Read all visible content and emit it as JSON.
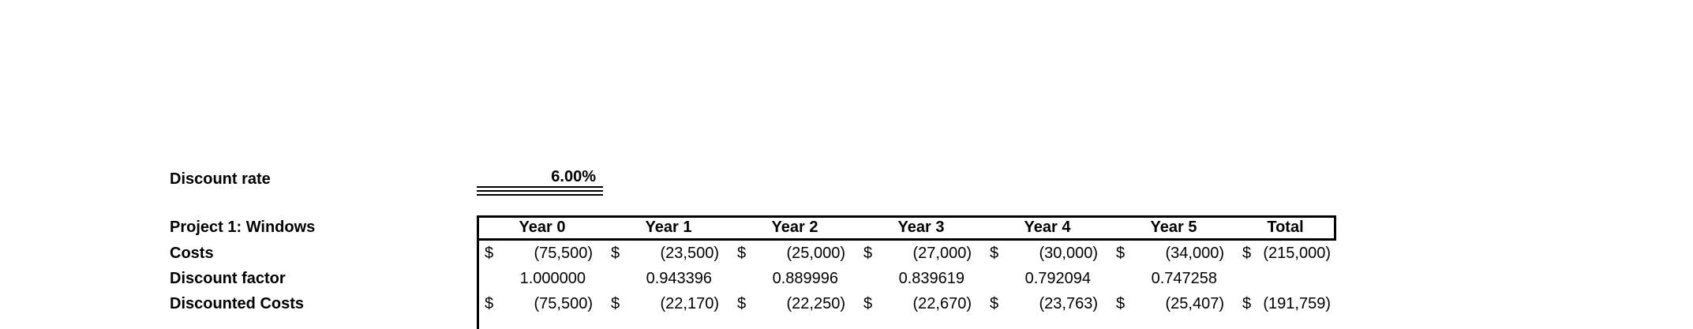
{
  "discount_rate": {
    "label": "Discount rate",
    "value": "6.00%"
  },
  "project": {
    "title": "Project 1: Windows",
    "row_labels": {
      "costs": "Costs",
      "discount_factor": "Discount factor",
      "discounted_costs": "Discounted Costs"
    }
  },
  "table": {
    "headers": [
      "Year 0",
      "Year 1",
      "Year 2",
      "Year 3",
      "Year 4",
      "Year 5",
      "Total"
    ],
    "costs": [
      {
        "currency": "$",
        "amount": "(75,500)"
      },
      {
        "currency": "$",
        "amount": "(23,500)"
      },
      {
        "currency": "$",
        "amount": "(25,000)"
      },
      {
        "currency": "$",
        "amount": "(27,000)"
      },
      {
        "currency": "$",
        "amount": "(30,000)"
      },
      {
        "currency": "$",
        "amount": "(34,000)"
      },
      {
        "currency": "$",
        "amount": "(215,000)"
      }
    ],
    "discount_factor": [
      "1.000000",
      "0.943396",
      "0.889996",
      "0.839619",
      "0.792094",
      "0.747258",
      ""
    ],
    "discounted_costs": [
      {
        "currency": "$",
        "amount": "(75,500)"
      },
      {
        "currency": "$",
        "amount": "(22,170)"
      },
      {
        "currency": "$",
        "amount": "(22,250)"
      },
      {
        "currency": "$",
        "amount": "(22,670)"
      },
      {
        "currency": "$",
        "amount": "(23,763)"
      },
      {
        "currency": "$",
        "amount": "(25,407)"
      },
      {
        "currency": "$",
        "amount": "(191,759)"
      }
    ]
  },
  "colors": {
    "background": "#ffffff",
    "text": "#000000",
    "border": "#000000"
  }
}
